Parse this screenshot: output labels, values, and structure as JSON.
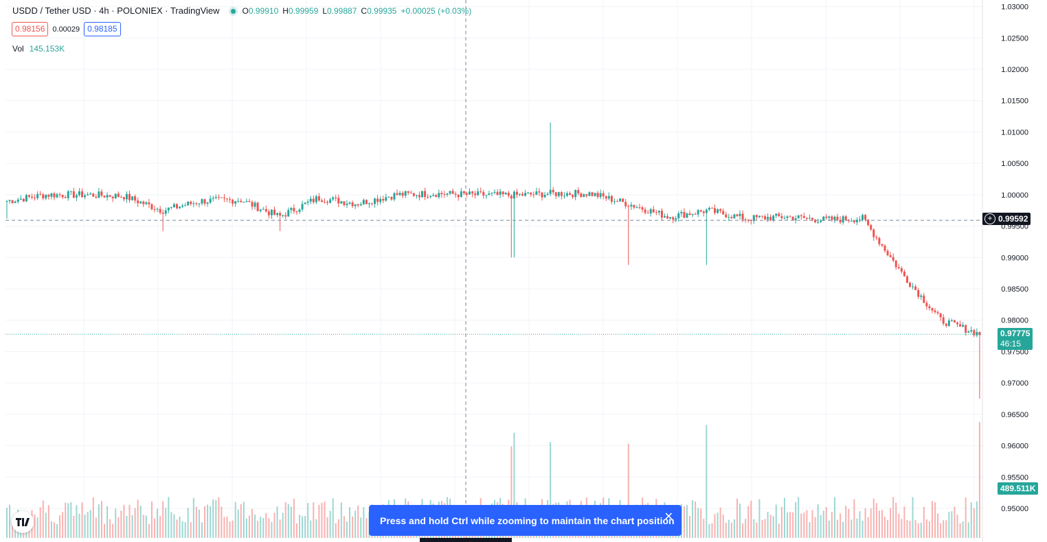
{
  "header": {
    "title": "USDD / Tether USD · 4h · POLONIEX · TradingView",
    "ohlc": [
      {
        "k": "O",
        "v": "0.99910"
      },
      {
        "k": "H",
        "v": "0.99959"
      },
      {
        "k": "L",
        "v": "0.99887"
      },
      {
        "k": "C",
        "v": "0.99935"
      }
    ],
    "change": "+0.00025 (+0.03%)",
    "sell_price": "0.98156",
    "spread": "0.00029",
    "buy_price": "0.98185",
    "volume_label": "Vol",
    "volume_value": "145.153K"
  },
  "price_tags": {
    "crosshair": "0.99592",
    "last_price": "0.97775",
    "countdown": "46:15",
    "volume": "489.511K"
  },
  "toast": {
    "message": "Press and hold Ctrl while zooming to maintain the chart position",
    "close": "✕"
  },
  "colors": {
    "up": "#26a69a",
    "down": "#ef5350",
    "grid": "#f0f3fa",
    "text": "#131722",
    "toast": "#2962ff"
  },
  "chart_data": {
    "type": "candlestick",
    "symbol": "USDD / Tether USD",
    "interval": "4h",
    "exchange": "POLONIEX",
    "y_axis_ticks": [
      "1.03000",
      "1.02500",
      "1.02000",
      "1.01500",
      "1.01000",
      "1.00500",
      "1.00000",
      "0.99500",
      "0.99000",
      "0.98500",
      "0.98000",
      "0.97500",
      "0.97000",
      "0.96500",
      "0.96000",
      "0.95500",
      "0.95000"
    ],
    "ylim": [
      0.946,
      1.0305
    ],
    "crosshair_price": 0.99592,
    "last_price": 0.97775,
    "grid": true,
    "candles_approx": [
      {
        "close": 0.999,
        "low": 0.9962
      },
      {
        "close": 1.0
      },
      {
        "close": 1.0
      },
      {
        "close": 0.9998
      },
      {
        "close": 0.9975,
        "low": 0.9942
      },
      {
        "close": 0.999
      },
      {
        "close": 0.9992
      },
      {
        "close": 0.9965,
        "low": 0.9942
      },
      {
        "close": 0.9995
      },
      {
        "close": 0.9986
      },
      {
        "close": 1.0
      },
      {
        "close": 1.0002
      },
      {
        "close": 1.0
      },
      {
        "close": 0.9999,
        "low": 0.99
      },
      {
        "close": 1.0002,
        "high": 1.0115
      },
      {
        "close": 1.0002
      },
      {
        "close": 0.9985,
        "low": 0.9888
      },
      {
        "close": 0.9965
      },
      {
        "close": 0.9975,
        "low": 0.9888
      },
      {
        "close": 0.9962
      },
      {
        "close": 0.9965
      },
      {
        "close": 0.996
      },
      {
        "close": 0.9962
      },
      {
        "close": 0.9875
      },
      {
        "close": 0.98
      },
      {
        "close": 0.9778,
        "low": 0.9675
      }
    ],
    "volume_last": "489.511K"
  }
}
